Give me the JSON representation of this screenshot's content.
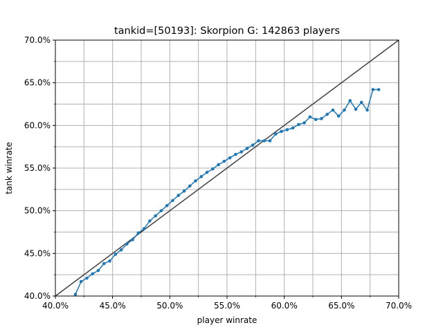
{
  "chart_data": {
    "type": "line",
    "title": "tankid=[50193]: Skorpion G: 142863 players",
    "xlabel": "player winrate",
    "ylabel": "tank winrate",
    "xlim": [
      0.4,
      0.7
    ],
    "ylim": [
      0.4,
      0.7
    ],
    "grid": true,
    "x_ticks": [
      0.4,
      0.45,
      0.5,
      0.55,
      0.6,
      0.65,
      0.7
    ],
    "x_tick_labels": [
      "40.0%",
      "45.0%",
      "50.0%",
      "55.0%",
      "60.0%",
      "65.0%",
      "70.0%"
    ],
    "y_ticks": [
      0.4,
      0.45,
      0.5,
      0.55,
      0.6,
      0.65,
      0.7
    ],
    "y_tick_labels": [
      "40.0%",
      "45.0%",
      "50.0%",
      "55.0%",
      "60.0%",
      "65.0%",
      "70.0%"
    ],
    "reference_line": {
      "x": [
        0.4,
        0.7
      ],
      "y": [
        0.4,
        0.7
      ],
      "color": "#404040"
    },
    "series": [
      {
        "color": "#1f77b4",
        "x": [
          0.4175,
          0.4225,
          0.4275,
          0.4325,
          0.4375,
          0.4425,
          0.4475,
          0.4525,
          0.4575,
          0.4625,
          0.4675,
          0.4725,
          0.4775,
          0.4825,
          0.4875,
          0.4925,
          0.4975,
          0.5025,
          0.5075,
          0.5125,
          0.5175,
          0.5225,
          0.5275,
          0.5325,
          0.5375,
          0.5425,
          0.5475,
          0.5525,
          0.5575,
          0.5625,
          0.5675,
          0.5725,
          0.5775,
          0.5825,
          0.5875,
          0.5925,
          0.5975,
          0.6025,
          0.6075,
          0.6125,
          0.6175,
          0.6225,
          0.6275,
          0.6325,
          0.6375,
          0.6425,
          0.6475,
          0.6525,
          0.6575,
          0.6625,
          0.6675,
          0.6725,
          0.6775,
          0.6825
        ],
        "y": [
          0.402,
          0.417,
          0.421,
          0.426,
          0.43,
          0.438,
          0.441,
          0.449,
          0.454,
          0.461,
          0.466,
          0.474,
          0.479,
          0.488,
          0.494,
          0.5,
          0.506,
          0.512,
          0.518,
          0.523,
          0.529,
          0.535,
          0.54,
          0.545,
          0.549,
          0.554,
          0.558,
          0.562,
          0.566,
          0.569,
          0.573,
          0.577,
          0.582,
          0.582,
          0.582,
          0.59,
          0.593,
          0.595,
          0.597,
          0.601,
          0.603,
          0.61,
          0.607,
          0.608,
          0.613,
          0.618,
          0.611,
          0.618,
          0.629,
          0.619,
          0.627,
          0.618,
          0.642,
          0.642
        ]
      }
    ]
  }
}
